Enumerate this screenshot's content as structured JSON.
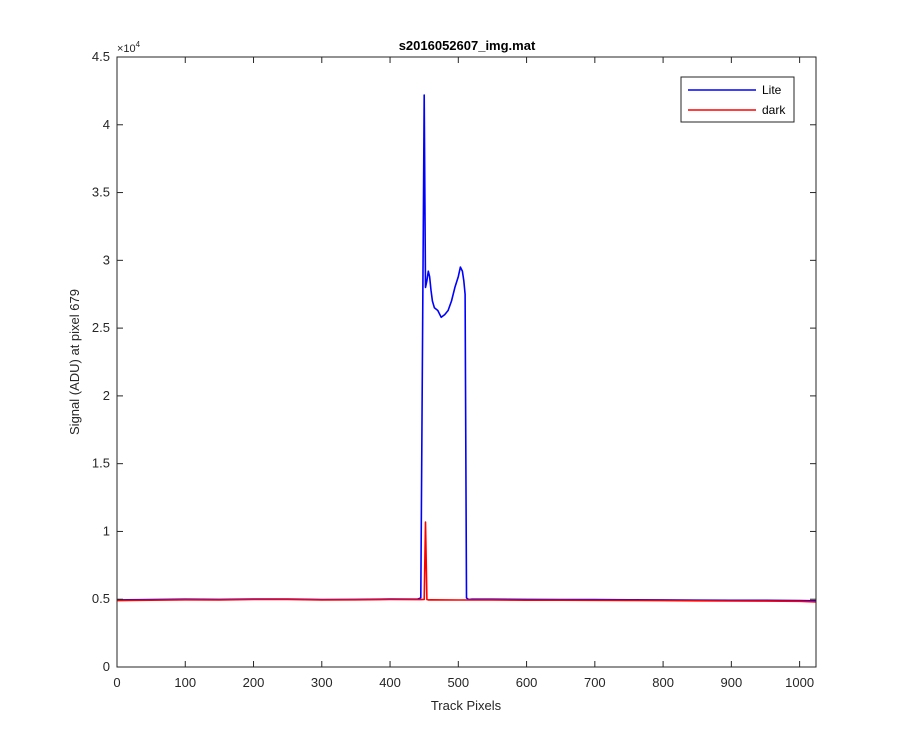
{
  "chart_data": {
    "type": "line",
    "title": "s2016052607_img.mat",
    "xlabel": "Track Pixels",
    "ylabel": "Signal (ADU) at pixel 679",
    "xlim": [
      0,
      1024
    ],
    "ylim": [
      0,
      45000
    ],
    "x_ticks": [
      0,
      100,
      200,
      300,
      400,
      500,
      600,
      700,
      800,
      900,
      1000
    ],
    "x_tick_labels": [
      "0",
      "100",
      "200",
      "300",
      "400",
      "500",
      "600",
      "700",
      "800",
      "900",
      "1000"
    ],
    "y_ticks": [
      0,
      5000,
      10000,
      15000,
      20000,
      25000,
      30000,
      35000,
      40000,
      45000
    ],
    "y_tick_labels": [
      "0",
      "0.5",
      "1",
      "1.5",
      "2",
      "2.5",
      "3",
      "3.5",
      "4",
      "4.5"
    ],
    "y_exponent_label": "×10",
    "y_exponent_power": "4",
    "legend_position": "top-right",
    "grid": false,
    "series": [
      {
        "name": "Lite",
        "color": "#0000ff",
        "x": [
          0,
          50,
          100,
          150,
          200,
          250,
          300,
          350,
          400,
          440,
          445,
          448,
          450,
          452,
          454,
          456,
          458,
          460,
          462,
          465,
          470,
          475,
          480,
          485,
          490,
          495,
          500,
          503,
          506,
          508,
          510,
          512,
          515,
          520,
          550,
          600,
          650,
          700,
          750,
          800,
          850,
          900,
          950,
          1000,
          1024
        ],
        "y": [
          4950,
          4980,
          5000,
          4990,
          5020,
          5010,
          4980,
          4990,
          5010,
          5000,
          5100,
          27000,
          42200,
          28000,
          28500,
          29200,
          28800,
          27800,
          27000,
          26500,
          26300,
          25800,
          26000,
          26300,
          27000,
          28000,
          28800,
          29500,
          29200,
          28500,
          27500,
          5100,
          4980,
          5000,
          5000,
          4990,
          4980,
          4970,
          4960,
          4950,
          4930,
          4920,
          4920,
          4900,
          4880
        ]
      },
      {
        "name": "dark",
        "color": "#ff0000",
        "x": [
          0,
          50,
          100,
          150,
          200,
          250,
          300,
          350,
          400,
          445,
          450,
          452,
          454,
          456,
          460,
          500,
          550,
          600,
          650,
          700,
          750,
          800,
          850,
          900,
          950,
          1000,
          1024
        ],
        "y": [
          4900,
          4930,
          4960,
          4950,
          4980,
          4990,
          4950,
          4960,
          4980,
          4970,
          4980,
          10700,
          4980,
          4950,
          4960,
          4940,
          4950,
          4930,
          4930,
          4920,
          4910,
          4900,
          4880,
          4870,
          4860,
          4850,
          4800
        ]
      }
    ]
  }
}
